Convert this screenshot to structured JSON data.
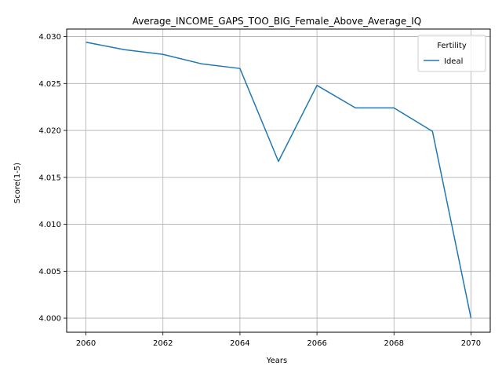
{
  "chart_data": {
    "type": "line",
    "title": "Average_INCOME_GAPS_TOO_BIG_Female_Above_Average_IQ",
    "xlabel": "Years",
    "ylabel": "Score(1-5)",
    "xlim": [
      2059.5,
      2070.5
    ],
    "ylim": [
      3.9985,
      4.0308
    ],
    "xticks": [
      2060,
      2062,
      2064,
      2066,
      2068,
      2070
    ],
    "yticks": [
      4.0,
      4.005,
      4.01,
      4.015,
      4.02,
      4.025,
      4.03
    ],
    "ytick_labels": [
      "4.000",
      "4.005",
      "4.010",
      "4.015",
      "4.020",
      "4.025",
      "4.030"
    ],
    "grid": true,
    "legend": {
      "title": "Fertility",
      "placement": "top-right"
    },
    "series": [
      {
        "name": "Ideal",
        "color": "#1f77b4",
        "x": [
          2060,
          2061,
          2062,
          2063,
          2064,
          2065,
          2066,
          2067,
          2068,
          2069,
          2070
        ],
        "y": [
          4.0294,
          4.0286,
          4.0281,
          4.0271,
          4.0266,
          4.0167,
          4.0248,
          4.0224,
          4.0224,
          4.0199,
          4.0
        ]
      }
    ]
  }
}
